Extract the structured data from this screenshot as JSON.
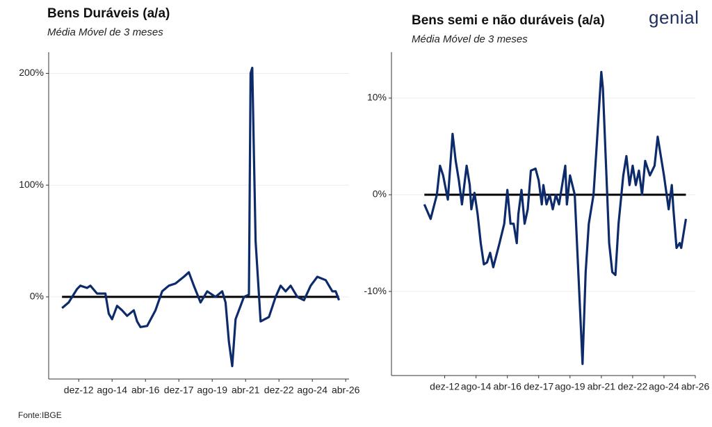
{
  "chart_data": [
    {
      "type": "line",
      "title": "Bens Duráveis (a/a)",
      "subtitle": "Média Móvel de 3 meses",
      "color": "#0d2b6b",
      "grid": true,
      "hline": 0,
      "x": [
        "2012-02",
        "2012-06",
        "2012-11",
        "2013-01",
        "2013-05",
        "2013-07",
        "2013-11",
        "2014-04",
        "2014-06",
        "2014-08",
        "2014-11",
        "2015-02",
        "2015-05",
        "2015-09",
        "2015-11",
        "2016-01",
        "2016-05",
        "2016-10",
        "2017-02",
        "2017-06",
        "2017-10",
        "2018-03",
        "2018-06",
        "2018-09",
        "2019-01",
        "2019-05",
        "2019-10",
        "2020-02",
        "2020-04",
        "2020-06",
        "2020-08",
        "2020-10",
        "2021-03",
        "2021-06",
        "2021-07",
        "2021-08",
        "2021-10",
        "2022-01",
        "2022-06",
        "2022-10",
        "2023-01",
        "2023-04",
        "2023-07",
        "2023-11",
        "2024-03",
        "2024-07",
        "2024-11",
        "2025-04",
        "2025-08",
        "2025-10",
        "2025-12"
      ],
      "values": [
        -10,
        -5,
        7,
        10,
        8,
        10,
        3,
        3,
        -15,
        -20,
        -8,
        -12,
        -17,
        -12,
        -22,
        -27,
        -26,
        -12,
        5,
        10,
        12,
        18,
        22,
        10,
        -5,
        5,
        0,
        5,
        -5,
        -40,
        -62,
        -20,
        0,
        2,
        200,
        205,
        50,
        -22,
        -18,
        0,
        10,
        5,
        10,
        0,
        -3,
        10,
        18,
        15,
        5,
        5,
        -3
      ],
      "xlim": [
        "2011-06",
        "2026-06"
      ],
      "xticks": [
        {
          "value": "2012-12",
          "label": "dez-12"
        },
        {
          "value": "2014-08",
          "label": "ago-14"
        },
        {
          "value": "2016-04",
          "label": "abr-16"
        },
        {
          "value": "2017-12",
          "label": "dez-17"
        },
        {
          "value": "2019-08",
          "label": "ago-19"
        },
        {
          "value": "2021-04",
          "label": "abr-21"
        },
        {
          "value": "2022-12",
          "label": "dez-22"
        },
        {
          "value": "2024-08",
          "label": "ago-24"
        },
        {
          "value": "2026-04",
          "label": "abr-26"
        }
      ],
      "ylim": [
        -73.5,
        219
      ],
      "yticks": [
        {
          "value": 0,
          "label": "0%"
        },
        {
          "value": 100,
          "label": "100%"
        },
        {
          "value": 200,
          "label": "200%"
        }
      ]
    },
    {
      "type": "line",
      "title": "Bens semi e não duráveis (a/a)",
      "subtitle": "Média Móvel de 3 meses",
      "color": "#0d2b6b",
      "grid": true,
      "hline": 0,
      "x": [
        "2011-11",
        "2012-03",
        "2012-07",
        "2012-09",
        "2012-11",
        "2013-02",
        "2013-05",
        "2013-07",
        "2013-09",
        "2013-11",
        "2014-02",
        "2014-04",
        "2014-05",
        "2014-07",
        "2014-09",
        "2014-11",
        "2015-01",
        "2015-03",
        "2015-05",
        "2015-07",
        "2015-11",
        "2016-02",
        "2016-04",
        "2016-06",
        "2016-08",
        "2016-10",
        "2016-11",
        "2017-01",
        "2017-03",
        "2017-05",
        "2017-07",
        "2017-10",
        "2017-12",
        "2018-02",
        "2018-03",
        "2018-05",
        "2018-07",
        "2018-09",
        "2018-11",
        "2019-01",
        "2019-03",
        "2019-05",
        "2019-06",
        "2019-08",
        "2019-11",
        "2020-01",
        "2020-03",
        "2020-04",
        "2020-06",
        "2020-08",
        "2020-11",
        "2021-01",
        "2021-04",
        "2021-05",
        "2021-07",
        "2021-09",
        "2021-11",
        "2022-01",
        "2022-03",
        "2022-06",
        "2022-08",
        "2022-10",
        "2022-12",
        "2023-02",
        "2023-04",
        "2023-06",
        "2023-08",
        "2023-11",
        "2024-02",
        "2024-04",
        "2024-06",
        "2024-08",
        "2024-11",
        "2025-01",
        "2025-02",
        "2025-04",
        "2025-06",
        "2025-07",
        "2025-10"
      ],
      "values": [
        -1,
        -2.5,
        0,
        3,
        2,
        -0.5,
        6.3,
        3.5,
        1.5,
        -1,
        3,
        1,
        -1.5,
        0.2,
        -2,
        -5,
        -7.2,
        -7,
        -6,
        -7.5,
        -5,
        -3,
        0.5,
        -3,
        -3,
        -5,
        -2,
        0.5,
        -3,
        -1.5,
        2.5,
        2.7,
        1.5,
        -1,
        1,
        -1,
        0,
        -1.5,
        0,
        -1,
        1,
        3,
        -1,
        2,
        0,
        -7,
        -14,
        -17.5,
        -8,
        -3,
        0,
        5,
        12.7,
        11,
        3,
        -5,
        -8,
        -8.3,
        -3,
        2,
        4,
        1,
        3,
        1,
        2.5,
        0,
        3.5,
        2,
        3,
        6,
        4,
        2,
        -1.5,
        1,
        -1.5,
        -5.5,
        -5,
        -5.5,
        -2.5
      ],
      "xlim": [
        "2010-02",
        "2026-04"
      ],
      "xticks": [
        {
          "value": "2012-12",
          "label": "dez-12"
        },
        {
          "value": "2014-08",
          "label": "ago-14"
        },
        {
          "value": "2016-04",
          "label": "abr-16"
        },
        {
          "value": "2017-12",
          "label": "dez-17"
        },
        {
          "value": "2019-08",
          "label": "ago-19"
        },
        {
          "value": "2021-04",
          "label": "abr-21"
        },
        {
          "value": "2022-12",
          "label": "dez-22"
        },
        {
          "value": "2024-08",
          "label": "ago-24"
        },
        {
          "value": "2026-04",
          "label": "abr-26"
        }
      ],
      "ylim": [
        -18.7,
        14.75
      ],
      "yticks": [
        {
          "value": -10,
          "label": "-10%"
        },
        {
          "value": 0,
          "label": "0%"
        },
        {
          "value": 10,
          "label": "10%"
        }
      ]
    }
  ],
  "logo": "genial",
  "source": "Fonte:IBGE"
}
